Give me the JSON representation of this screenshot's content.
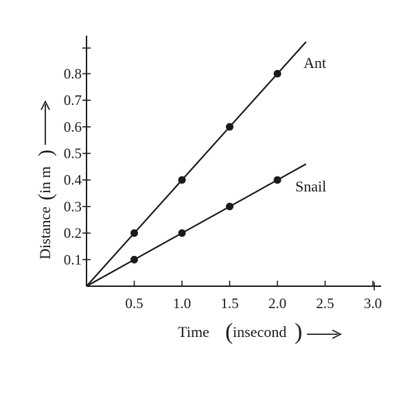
{
  "chart_data": {
    "type": "line",
    "xlabel": "Time",
    "xlabel_unit": "insecond",
    "ylabel": "Distance",
    "ylabel_unit": "in m",
    "xlim": [
      0,
      3.0
    ],
    "ylim": [
      0,
      0.9
    ],
    "x_ticks": [
      0.5,
      1.0,
      1.5,
      2.0,
      2.5,
      3.0
    ],
    "x_tick_labels": [
      "0.5",
      "1.0",
      "1.5",
      "2.0",
      "2.5",
      "3.0"
    ],
    "y_ticks": [
      0.1,
      0.2,
      0.3,
      0.4,
      0.5,
      0.6,
      0.7,
      0.8
    ],
    "y_tick_labels": [
      "0.1",
      "0.2",
      "0.3",
      "0.4",
      "0.5",
      "0.6",
      "0.7",
      "0.8"
    ],
    "grid": false,
    "series": [
      {
        "name": "Ant",
        "points": [
          [
            0.5,
            0.2
          ],
          [
            1.0,
            0.4
          ],
          [
            1.5,
            0.6
          ],
          [
            2.0,
            0.8
          ]
        ],
        "line_from": [
          0,
          0
        ],
        "line_to": [
          2.3,
          0.92
        ]
      },
      {
        "name": "Snail",
        "points": [
          [
            0.5,
            0.1
          ],
          [
            1.0,
            0.2
          ],
          [
            1.5,
            0.3
          ],
          [
            2.0,
            0.4
          ]
        ],
        "line_from": [
          0,
          0
        ],
        "line_to": [
          2.3,
          0.46
        ]
      }
    ],
    "colors": {
      "ink": "#1a1a1a"
    }
  }
}
